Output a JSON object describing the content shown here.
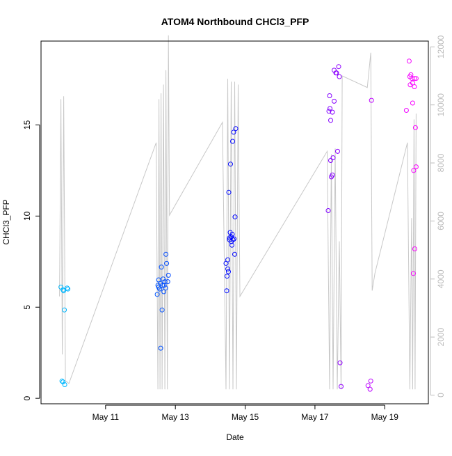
{
  "chart_data": {
    "type": "scatter",
    "title": "ATOM4 Northbound CHCl3_PFP",
    "xlabel": "Date",
    "ylabel": "CHCl3_PFP",
    "x_unit": "days in May",
    "xlim": [
      9.15,
      20.25
    ],
    "ylim": [
      -0.3,
      19.6
    ],
    "x_ticks": [
      11,
      13,
      15,
      17,
      19
    ],
    "x_tick_labels": [
      "May 11",
      "May 13",
      "May 15",
      "May 17",
      "May 19"
    ],
    "y_ticks": [
      0,
      5,
      10,
      15
    ],
    "y_tick_labels": [
      "0",
      "5",
      "10",
      "15"
    ],
    "y2lim": [
      -300,
      12200
    ],
    "y2_ticks": [
      0,
      2000,
      4000,
      6000,
      8000,
      10000,
      12000
    ],
    "y2_tick_labels": [
      "0",
      "2000",
      "4000",
      "6000",
      "8000",
      "10000",
      "12000"
    ],
    "grid": false,
    "series": [
      {
        "name": "CHCl3_PFP (circles)",
        "marker": "open-circle",
        "color_gradient": [
          "#00bfff",
          "#0000ff",
          "#ff00ff"
        ],
        "points": [
          {
            "x": 9.72,
            "y": 6.1
          },
          {
            "x": 9.78,
            "y": 5.95
          },
          {
            "x": 9.8,
            "y": 5.9
          },
          {
            "x": 9.82,
            "y": 4.85
          },
          {
            "x": 9.9,
            "y": 6.05
          },
          {
            "x": 9.92,
            "y": 6.0
          },
          {
            "x": 9.75,
            "y": 0.95
          },
          {
            "x": 9.78,
            "y": 0.9
          },
          {
            "x": 9.83,
            "y": 0.75
          },
          {
            "x": 12.48,
            "y": 5.7
          },
          {
            "x": 12.5,
            "y": 6.2
          },
          {
            "x": 12.52,
            "y": 6.5
          },
          {
            "x": 12.55,
            "y": 6.0
          },
          {
            "x": 12.57,
            "y": 6.3
          },
          {
            "x": 12.58,
            "y": 2.75
          },
          {
            "x": 12.6,
            "y": 7.2
          },
          {
            "x": 12.62,
            "y": 4.85
          },
          {
            "x": 12.63,
            "y": 6.2
          },
          {
            "x": 12.65,
            "y": 6.55
          },
          {
            "x": 12.67,
            "y": 5.85
          },
          {
            "x": 12.7,
            "y": 6.4
          },
          {
            "x": 12.72,
            "y": 6.05
          },
          {
            "x": 12.73,
            "y": 7.9
          },
          {
            "x": 12.75,
            "y": 7.4
          },
          {
            "x": 12.78,
            "y": 6.4
          },
          {
            "x": 12.8,
            "y": 6.75
          },
          {
            "x": 12.52,
            "y": 6.1
          },
          {
            "x": 12.68,
            "y": 6.2
          },
          {
            "x": 14.45,
            "y": 7.4
          },
          {
            "x": 14.47,
            "y": 5.9
          },
          {
            "x": 14.48,
            "y": 6.7
          },
          {
            "x": 14.5,
            "y": 7.1
          },
          {
            "x": 14.5,
            "y": 7.6
          },
          {
            "x": 14.52,
            "y": 6.95
          },
          {
            "x": 14.53,
            "y": 11.3
          },
          {
            "x": 14.55,
            "y": 8.7
          },
          {
            "x": 14.57,
            "y": 9.1
          },
          {
            "x": 14.58,
            "y": 12.85
          },
          {
            "x": 14.6,
            "y": 8.85
          },
          {
            "x": 14.62,
            "y": 8.4
          },
          {
            "x": 14.63,
            "y": 9.0
          },
          {
            "x": 14.64,
            "y": 14.1
          },
          {
            "x": 14.65,
            "y": 8.7
          },
          {
            "x": 14.67,
            "y": 14.6
          },
          {
            "x": 14.68,
            "y": 8.75
          },
          {
            "x": 14.7,
            "y": 7.9
          },
          {
            "x": 14.71,
            "y": 9.95
          },
          {
            "x": 14.73,
            "y": 14.8
          },
          {
            "x": 14.55,
            "y": 8.8
          },
          {
            "x": 14.6,
            "y": 8.6
          },
          {
            "x": 17.38,
            "y": 10.3
          },
          {
            "x": 17.4,
            "y": 15.75
          },
          {
            "x": 17.42,
            "y": 16.6
          },
          {
            "x": 17.43,
            "y": 15.9
          },
          {
            "x": 17.45,
            "y": 15.25
          },
          {
            "x": 17.45,
            "y": 13.05
          },
          {
            "x": 17.47,
            "y": 12.15
          },
          {
            "x": 17.5,
            "y": 12.25
          },
          {
            "x": 17.52,
            "y": 13.2
          },
          {
            "x": 17.5,
            "y": 15.7
          },
          {
            "x": 17.55,
            "y": 16.3
          },
          {
            "x": 17.55,
            "y": 18.0
          },
          {
            "x": 17.6,
            "y": 17.85
          },
          {
            "x": 17.62,
            "y": 17.85
          },
          {
            "x": 17.65,
            "y": 13.55
          },
          {
            "x": 17.68,
            "y": 18.2
          },
          {
            "x": 17.7,
            "y": 17.65
          },
          {
            "x": 17.72,
            "y": 1.95
          },
          {
            "x": 17.75,
            "y": 0.65
          },
          {
            "x": 18.52,
            "y": 0.7
          },
          {
            "x": 18.58,
            "y": 0.5
          },
          {
            "x": 18.6,
            "y": 0.95
          },
          {
            "x": 18.62,
            "y": 16.35
          },
          {
            "x": 19.62,
            "y": 15.8
          },
          {
            "x": 19.7,
            "y": 18.5
          },
          {
            "x": 19.72,
            "y": 17.65
          },
          {
            "x": 19.73,
            "y": 17.2
          },
          {
            "x": 19.75,
            "y": 17.75
          },
          {
            "x": 19.78,
            "y": 17.55
          },
          {
            "x": 19.8,
            "y": 17.3
          },
          {
            "x": 19.8,
            "y": 16.2
          },
          {
            "x": 19.82,
            "y": 6.85
          },
          {
            "x": 19.83,
            "y": 12.5
          },
          {
            "x": 19.85,
            "y": 17.55
          },
          {
            "x": 19.86,
            "y": 8.2
          },
          {
            "x": 19.88,
            "y": 14.85
          },
          {
            "x": 19.9,
            "y": 12.7
          },
          {
            "x": 19.85,
            "y": 17.1
          },
          {
            "x": 19.9,
            "y": 17.55
          }
        ]
      },
      {
        "name": "secondary axis (grey line)",
        "color": "#c8c8c8",
        "axis": "right",
        "points": [
          {
            "x": 9.68,
            "y": 3400
          },
          {
            "x": 9.72,
            "y": 10200
          },
          {
            "x": 9.76,
            "y": 1400
          },
          {
            "x": 9.8,
            "y": 10300
          },
          {
            "x": 9.85,
            "y": 500
          },
          {
            "x": 9.95,
            "y": 400
          },
          {
            "x": 12.45,
            "y": 8700
          },
          {
            "x": 12.5,
            "y": 200
          },
          {
            "x": 12.53,
            "y": 10200
          },
          {
            "x": 12.56,
            "y": 200
          },
          {
            "x": 12.59,
            "y": 10400
          },
          {
            "x": 12.62,
            "y": 200
          },
          {
            "x": 12.66,
            "y": 10700
          },
          {
            "x": 12.7,
            "y": 200
          },
          {
            "x": 12.73,
            "y": 11200
          },
          {
            "x": 12.77,
            "y": 200
          },
          {
            "x": 12.8,
            "y": 12400
          },
          {
            "x": 12.83,
            "y": 6200
          },
          {
            "x": 14.35,
            "y": 9400
          },
          {
            "x": 14.45,
            "y": 200
          },
          {
            "x": 14.5,
            "y": 10900
          },
          {
            "x": 14.55,
            "y": 200
          },
          {
            "x": 14.6,
            "y": 10800
          },
          {
            "x": 14.65,
            "y": 200
          },
          {
            "x": 14.7,
            "y": 10800
          },
          {
            "x": 14.75,
            "y": 200
          },
          {
            "x": 14.8,
            "y": 10700
          },
          {
            "x": 14.85,
            "y": 3400
          },
          {
            "x": 17.35,
            "y": 8400
          },
          {
            "x": 17.42,
            "y": 200
          },
          {
            "x": 17.47,
            "y": 8300
          },
          {
            "x": 17.52,
            "y": 200
          },
          {
            "x": 17.58,
            "y": 8500
          },
          {
            "x": 17.64,
            "y": 200
          },
          {
            "x": 17.7,
            "y": 5300
          },
          {
            "x": 17.75,
            "y": 200
          },
          {
            "x": 17.78,
            "y": 11000
          },
          {
            "x": 18.5,
            "y": 10600
          },
          {
            "x": 18.6,
            "y": 11800
          },
          {
            "x": 18.64,
            "y": 3600
          },
          {
            "x": 18.72,
            "y": 4200
          },
          {
            "x": 19.65,
            "y": 8700
          },
          {
            "x": 19.72,
            "y": 200
          },
          {
            "x": 19.77,
            "y": 6100
          },
          {
            "x": 19.8,
            "y": 200
          },
          {
            "x": 19.84,
            "y": 9500
          },
          {
            "x": 19.87,
            "y": 200
          },
          {
            "x": 19.9,
            "y": 9700
          }
        ]
      }
    ]
  }
}
